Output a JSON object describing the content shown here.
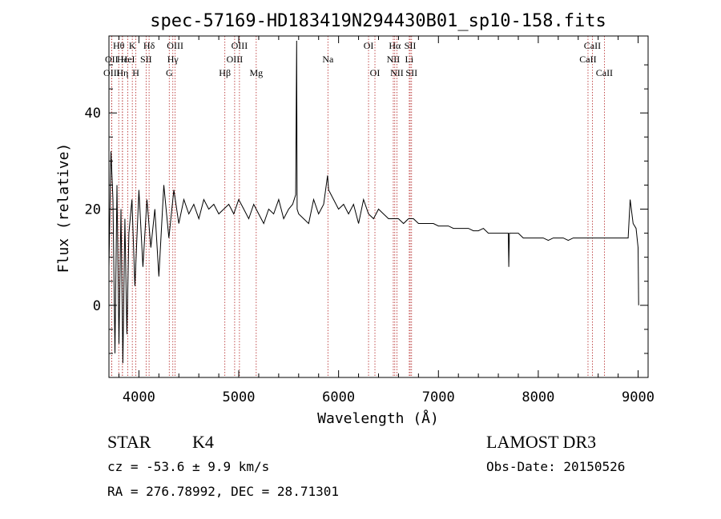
{
  "chart_data": {
    "type": "line",
    "title": "spec-57169-HD183419N294430B01_sp10-158.fits",
    "xlabel": "Wavelength (Å)",
    "ylabel": "Flux (relative)",
    "xlim": [
      3700,
      9100
    ],
    "ylim": [
      -15,
      56
    ],
    "xticks": [
      4000,
      5000,
      6000,
      7000,
      8000,
      9000
    ],
    "xtick_labels": [
      "4000",
      "5000",
      "6000",
      "7000",
      "8000",
      "9000"
    ],
    "yticks": [
      0,
      20,
      40
    ],
    "ytick_labels": [
      "0",
      "20",
      "40"
    ],
    "series": [
      {
        "name": "flux",
        "x": [
          3700,
          3720,
          3740,
          3760,
          3780,
          3800,
          3820,
          3840,
          3860,
          3880,
          3900,
          3930,
          3960,
          4000,
          4040,
          4080,
          4120,
          4160,
          4200,
          4250,
          4300,
          4350,
          4400,
          4450,
          4500,
          4550,
          4600,
          4650,
          4700,
          4750,
          4800,
          4850,
          4900,
          4950,
          5000,
          5050,
          5100,
          5150,
          5200,
          5250,
          5300,
          5350,
          5400,
          5450,
          5500,
          5540,
          5570,
          5580,
          5585,
          5600,
          5650,
          5700,
          5750,
          5800,
          5850,
          5890,
          5900,
          5950,
          6000,
          6050,
          6100,
          6150,
          6200,
          6250,
          6300,
          6350,
          6400,
          6450,
          6500,
          6562,
          6600,
          6650,
          6700,
          6750,
          6800,
          6850,
          6900,
          6950,
          7000,
          7050,
          7100,
          7150,
          7200,
          7250,
          7300,
          7350,
          7400,
          7450,
          7500,
          7550,
          7600,
          7650,
          7700,
          7705,
          7710,
          7750,
          7800,
          7850,
          7900,
          7950,
          8000,
          8050,
          8100,
          8150,
          8200,
          8250,
          8300,
          8350,
          8400,
          8450,
          8500,
          8550,
          8600,
          8650,
          8700,
          8750,
          8800,
          8850,
          8900,
          8920,
          8950,
          8980,
          9000,
          9005
        ],
        "y": [
          8,
          32,
          22,
          -10,
          25,
          -8,
          20,
          -12,
          18,
          -6,
          15,
          22,
          4,
          24,
          8,
          22,
          12,
          20,
          6,
          25,
          14,
          24,
          17,
          22,
          19,
          21,
          18,
          22,
          20,
          21,
          19,
          20,
          21,
          19,
          22,
          20,
          18,
          21,
          19,
          17,
          20,
          19,
          22,
          18,
          20,
          21,
          23,
          55,
          20,
          19,
          18,
          17,
          22,
          19,
          21,
          27,
          24,
          22,
          20,
          21,
          19,
          21,
          17,
          22,
          19,
          18,
          20,
          19,
          18,
          18,
          18,
          17,
          18,
          18,
          17,
          17,
          17,
          17,
          16.5,
          16.5,
          16.5,
          16,
          16,
          16,
          16,
          15.5,
          15.5,
          16,
          15,
          15,
          15,
          15,
          15,
          8,
          15,
          15,
          15,
          14,
          14,
          14,
          14,
          14,
          13.5,
          14,
          14,
          14,
          13.5,
          14,
          14,
          14,
          14,
          14,
          14,
          14,
          14,
          14,
          14,
          14,
          14,
          22,
          17,
          16,
          12,
          0
        ]
      }
    ],
    "lines": [
      {
        "name": "Hθ",
        "w": 3798,
        "row": 1
      },
      {
        "name": "OII",
        "w": 3727,
        "row": 2
      },
      {
        "name": "OIII",
        "w": 3727,
        "row": 3
      },
      {
        "name": "Hε",
        "w": 3835,
        "row": 2
      },
      {
        "name": "Hη",
        "w": 3835,
        "row": 3
      },
      {
        "name": "K",
        "w": 3934,
        "row": 1
      },
      {
        "name": "HeI",
        "w": 3889,
        "row": 2
      },
      {
        "name": "H",
        "w": 3969,
        "row": 3
      },
      {
        "name": "Hδ",
        "w": 4102,
        "row": 1
      },
      {
        "name": "SII",
        "w": 4072,
        "row": 2
      },
      {
        "name": "OIII",
        "w": 4363,
        "row": 1
      },
      {
        "name": "Hγ",
        "w": 4340,
        "row": 2
      },
      {
        "name": "G",
        "w": 4304,
        "row": 3
      },
      {
        "name": "Hβ",
        "w": 4861,
        "row": 3
      },
      {
        "name": "OIII",
        "w": 5007,
        "row": 1
      },
      {
        "name": "OIII",
        "w": 4959,
        "row": 2
      },
      {
        "name": "Mg",
        "w": 5175,
        "row": 3
      },
      {
        "name": "Na",
        "w": 5893,
        "row": 2
      },
      {
        "name": "OI",
        "w": 6300,
        "row": 1
      },
      {
        "name": "OI",
        "w": 6364,
        "row": 3
      },
      {
        "name": "Hα",
        "w": 6563,
        "row": 1
      },
      {
        "name": "NII",
        "w": 6548,
        "row": 2
      },
      {
        "name": "NII",
        "w": 6584,
        "row": 3
      },
      {
        "name": "SII",
        "w": 6717,
        "row": 1
      },
      {
        "name": "Li",
        "w": 6708,
        "row": 2
      },
      {
        "name": "SII",
        "w": 6731,
        "row": 3
      },
      {
        "name": "CaII",
        "w": 8542,
        "row": 1
      },
      {
        "name": "CaII",
        "w": 8498,
        "row": 2
      },
      {
        "name": "CaII",
        "w": 8662,
        "row": 3
      }
    ]
  },
  "info": {
    "object_class": "STAR",
    "subclass": "K4",
    "cz": "cz = -53.6 ± 9.9 km/s",
    "radec": "RA = 276.78992, DEC =  28.71301",
    "survey": "LAMOST DR3",
    "obs_date": "Obs-Date: 20150526"
  },
  "colors": {
    "line_marker": "#b22222",
    "spectrum": "#000000"
  }
}
